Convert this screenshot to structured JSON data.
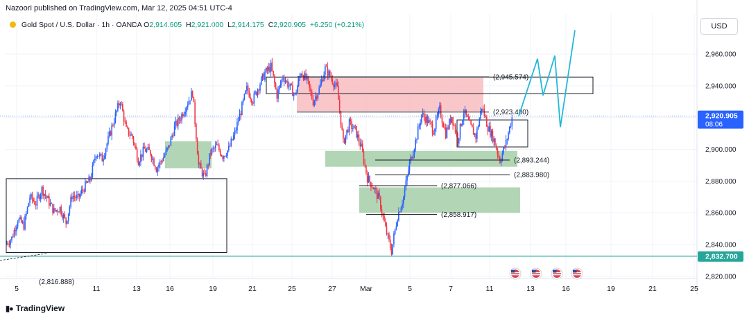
{
  "publisher_line": "Nazoori published on TradingView.com, Mar 12, 2025 04:51 UTC-4",
  "symbol_line": "Gold Spot / U.S. Dollar · 1h · OANDA",
  "ohlc": {
    "o_label": "O",
    "o": "2,914.605",
    "h_label": "H",
    "h": "2,921.000",
    "l_label": "L",
    "l": "2,914.175",
    "c_label": "C",
    "c": "2,920.905",
    "change": "+6.250 (+0.21%)"
  },
  "currency_button": "USD",
  "brand": "TradingView",
  "colors": {
    "up": "#2962ff",
    "down": "#f23645",
    "supply_zone": "#f7b9bd",
    "demand_zone": "#a5cfa8",
    "projection": "#22b8d8",
    "price_tag": "#2962ff",
    "support_line": "#26a69a"
  },
  "chart_data": {
    "type": "candlestick",
    "y_axis": {
      "min": 2815,
      "max": 2985,
      "ticks": [
        "2,820.000",
        "2,840.000",
        "2,860.000",
        "2,880.000",
        "2,900.000",
        "2,920.000",
        "2,940.000",
        "2,960.000"
      ]
    },
    "x_axis": {
      "labels": [
        "5",
        "11",
        "13",
        "16",
        "19",
        "21",
        "25",
        "27",
        "Mar",
        "5",
        "7",
        "11",
        "13",
        "16",
        "19",
        "21",
        "25"
      ]
    },
    "current_price": {
      "value": 2920.905,
      "label": "2,920.905",
      "countdown": "08:06"
    },
    "support_price": {
      "value": 2832.7,
      "label": "2,832.700"
    },
    "price_path": [
      2840,
      2844,
      2856,
      2852,
      2870,
      2866,
      2875,
      2868,
      2861,
      2863,
      2854,
      2871,
      2869,
      2876,
      2881,
      2898,
      2894,
      2906,
      2919,
      2931,
      2912,
      2908,
      2893,
      2900,
      2898,
      2888,
      2894,
      2901,
      2914,
      2920,
      2928,
      2936,
      2890,
      2882,
      2898,
      2902,
      2896,
      2900,
      2910,
      2924,
      2938,
      2931,
      2940,
      2948,
      2952,
      2934,
      2946,
      2940,
      2934,
      2949,
      2943,
      2930,
      2938,
      2951,
      2945,
      2938,
      2904,
      2916,
      2912,
      2901,
      2882,
      2876,
      2868,
      2850,
      2836,
      2858,
      2870,
      2891,
      2905,
      2922,
      2918,
      2912,
      2925,
      2910,
      2921,
      2906,
      2924,
      2915,
      2908,
      2927,
      2914,
      2906,
      2893,
      2904,
      2920
    ],
    "projection": [
      2920.9,
      2957,
      2934,
      2959,
      2914,
      2975
    ],
    "supply_zone": {
      "from": 2924,
      "to": 2945
    },
    "demand_zones": [
      {
        "from": 2888,
        "to": 2905
      },
      {
        "from": 2889,
        "to": 2899
      },
      {
        "from": 2860,
        "to": 2876
      }
    ],
    "levels": [
      {
        "value": 2945.574,
        "label": "(2,945.574)"
      },
      {
        "value": 2923.48,
        "label": "(2,923.480)"
      },
      {
        "value": 2893.244,
        "label": "(2,893.244)"
      },
      {
        "value": 2883.98,
        "label": "(2,883.980)"
      },
      {
        "value": 2877.066,
        "label": "(2,877.066)"
      },
      {
        "value": 2858.917,
        "label": "(2,858.917)"
      }
    ],
    "partial_label": "(2,816.888)",
    "events_count": 4
  }
}
